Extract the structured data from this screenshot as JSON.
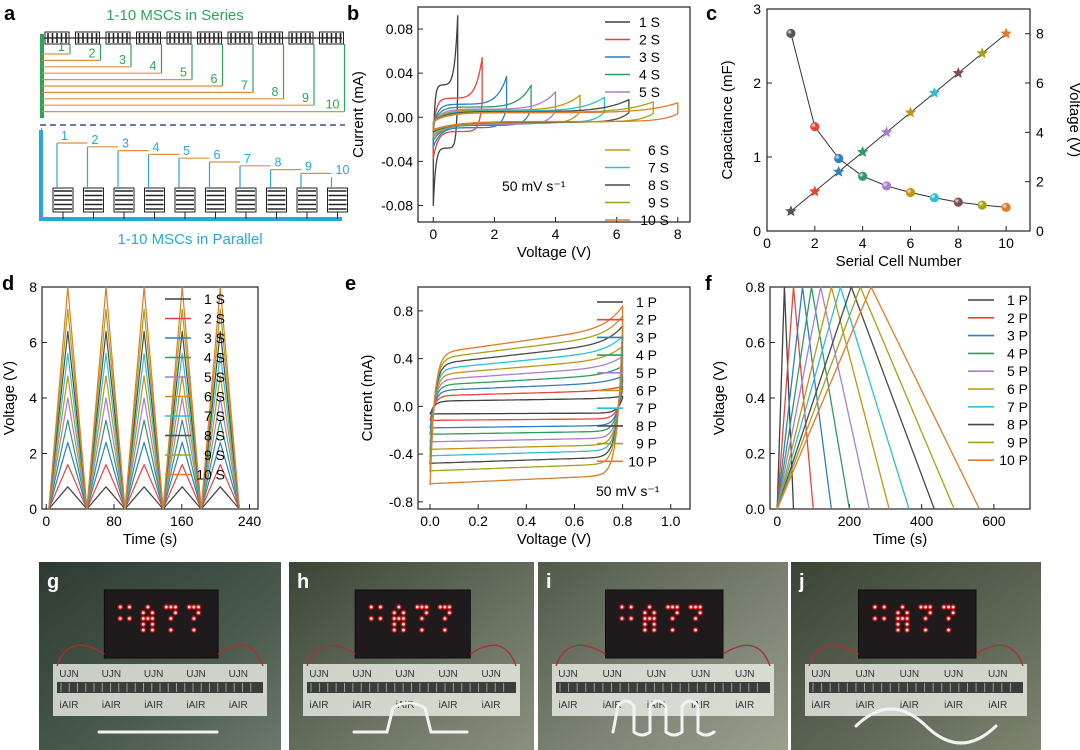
{
  "panels": {
    "a": {
      "letter": "a",
      "series_title": "1-10 MSCs in Series",
      "parallel_title": "1-10 MSCs in Parallel",
      "series_labels": [
        "1",
        "2",
        "3",
        "4",
        "5",
        "6",
        "7",
        "8",
        "9",
        "10"
      ],
      "parallel_labels": [
        "1",
        "2",
        "3",
        "4",
        "5",
        "6",
        "7",
        "8",
        "9",
        "10"
      ],
      "series_color": "#2ca55a",
      "series_wire_color": "#e0913a",
      "parallel_color": "#27a8dd",
      "parallel_wire_color": "#e0913a"
    },
    "g": {
      "letter": "g"
    },
    "h": {
      "letter": "h"
    },
    "i": {
      "letter": "i"
    },
    "j": {
      "letter": "j"
    }
  },
  "photo_labels": {
    "top": "UJN",
    "bottom": "iAIR"
  },
  "led_text": ":A??",
  "chart_data": [
    {
      "panel": "b",
      "type": "line",
      "xlabel": "Voltage (V)",
      "ylabel": "Current (mA)",
      "xlim": [
        -0.5,
        8.4
      ],
      "ylim": [
        -0.095,
        0.1
      ],
      "xticks": [
        0,
        2,
        4,
        6,
        8
      ],
      "yticks": [
        -0.08,
        -0.04,
        0.0,
        0.04,
        0.08
      ],
      "ytick_labels": [
        "-0.08",
        "-0.04",
        "0.00",
        "0.04",
        "0.08"
      ],
      "annotation": "50 mV s⁻¹",
      "legend": [
        "1 S",
        "2 S",
        "3 S",
        "4 S",
        "5 S",
        "6 S",
        "7 S",
        "8 S",
        "9 S",
        "10 S"
      ],
      "series": [
        {
          "name": "1 S",
          "vmax": 0.8,
          "ip": 0.092,
          "in": -0.08
        },
        {
          "name": "2 S",
          "vmax": 1.6,
          "ip": 0.054,
          "in": -0.037
        },
        {
          "name": "3 S",
          "vmax": 2.4,
          "ip": 0.037,
          "in": -0.027
        },
        {
          "name": "4 S",
          "vmax": 3.2,
          "ip": 0.029,
          "in": -0.021
        },
        {
          "name": "5 S",
          "vmax": 4.0,
          "ip": 0.023,
          "in": -0.018
        },
        {
          "name": "6 S",
          "vmax": 4.8,
          "ip": 0.02,
          "in": -0.016
        },
        {
          "name": "7 S",
          "vmax": 5.6,
          "ip": 0.018,
          "in": -0.014
        },
        {
          "name": "8 S",
          "vmax": 6.4,
          "ip": 0.016,
          "in": -0.013
        },
        {
          "name": "9 S",
          "vmax": 7.2,
          "ip": 0.014,
          "in": -0.012
        },
        {
          "name": "10 S",
          "vmax": 8.0,
          "ip": 0.013,
          "in": -0.011
        }
      ]
    },
    {
      "panel": "c",
      "type": "scatter",
      "xlabel": "Serial Cell Number",
      "ylabel": "Capacitance (mF)",
      "y2label": "Voltage (V)",
      "xlim": [
        0,
        11
      ],
      "ylim": [
        0,
        3
      ],
      "y2lim": [
        0,
        9
      ],
      "xticks": [
        0,
        2,
        4,
        6,
        8,
        10
      ],
      "yticks": [
        0,
        1,
        2,
        3
      ],
      "y2ticks": [
        0,
        2,
        4,
        6,
        8
      ],
      "x": [
        1,
        2,
        3,
        4,
        5,
        6,
        7,
        8,
        9,
        10
      ],
      "series": [
        {
          "axis": "left",
          "values": [
            2.67,
            1.41,
            0.98,
            0.74,
            0.61,
            0.52,
            0.45,
            0.39,
            0.35,
            0.32
          ]
        },
        {
          "axis": "right",
          "values": [
            0.8,
            1.6,
            2.4,
            3.2,
            4.0,
            4.8,
            5.6,
            6.4,
            7.2,
            8.0
          ]
        }
      ]
    },
    {
      "panel": "d",
      "type": "line",
      "xlabel": "Time (s)",
      "ylabel": "Voltage (V)",
      "xlim": [
        -5,
        250
      ],
      "ylim": [
        0,
        8
      ],
      "xticks": [
        0,
        80,
        160,
        240
      ],
      "yticks": [
        0,
        2,
        4,
        6,
        8
      ],
      "legend": [
        "1 S",
        "2 S",
        "3 S",
        "4 S",
        "5 S",
        "6 S",
        "7 S",
        "8 S",
        "9 S",
        "10 S"
      ],
      "period_s": 45,
      "cycles": 5,
      "series": [
        {
          "name": "1 S",
          "vmax": 0.8
        },
        {
          "name": "2 S",
          "vmax": 1.6
        },
        {
          "name": "3 S",
          "vmax": 2.4
        },
        {
          "name": "4 S",
          "vmax": 3.2
        },
        {
          "name": "5 S",
          "vmax": 4.0
        },
        {
          "name": "6 S",
          "vmax": 4.8
        },
        {
          "name": "7 S",
          "vmax": 5.6
        },
        {
          "name": "8 S",
          "vmax": 6.4
        },
        {
          "name": "9 S",
          "vmax": 7.2
        },
        {
          "name": "10 S",
          "vmax": 8.0
        }
      ]
    },
    {
      "panel": "e",
      "type": "line",
      "xlabel": "Voltage (V)",
      "ylabel": "Current (mA)",
      "xlim": [
        -0.05,
        1.08
      ],
      "ylim": [
        -0.86,
        1.0
      ],
      "xticks": [
        0.0,
        0.2,
        0.4,
        0.6,
        0.8,
        1.0
      ],
      "xtick_labels": [
        "0.0",
        "0.2",
        "0.4",
        "0.6",
        "0.8",
        "1.0"
      ],
      "yticks": [
        -0.8,
        -0.4,
        0.0,
        0.4,
        0.8
      ],
      "ytick_labels": [
        "-0.8",
        "-0.4",
        "0.0",
        "0.4",
        "0.8"
      ],
      "annotation": "50 mV s⁻¹",
      "legend": [
        "1 P",
        "2 P",
        "3 P",
        "4 P",
        "5 P",
        "6 P",
        "7 P",
        "8 P",
        "9 P",
        "10 P"
      ],
      "series": [
        {
          "name": "1 P",
          "ip": 0.05,
          "in": -0.07
        },
        {
          "name": "2 P",
          "ip": 0.1,
          "in": -0.13
        },
        {
          "name": "3 P",
          "ip": 0.15,
          "in": -0.2
        },
        {
          "name": "4 P",
          "ip": 0.2,
          "in": -0.26
        },
        {
          "name": "5 P",
          "ip": 0.25,
          "in": -0.33
        },
        {
          "name": "6 P",
          "ip": 0.3,
          "in": -0.4
        },
        {
          "name": "7 P",
          "ip": 0.35,
          "in": -0.46
        },
        {
          "name": "8 P",
          "ip": 0.4,
          "in": -0.53
        },
        {
          "name": "9 P",
          "ip": 0.45,
          "in": -0.6
        },
        {
          "name": "10 P",
          "ip": 0.5,
          "in": -0.72
        }
      ]
    },
    {
      "panel": "f",
      "type": "line",
      "xlabel": "Time (s)",
      "ylabel": "Voltage (V)",
      "xlim": [
        -20,
        700
      ],
      "ylim": [
        0,
        0.8
      ],
      "xticks": [
        0,
        200,
        400,
        600
      ],
      "yticks": [
        0.0,
        0.2,
        0.4,
        0.6,
        0.8
      ],
      "ytick_labels": [
        "0.0",
        "0.2",
        "0.4",
        "0.6",
        "0.8"
      ],
      "legend": [
        "1 P",
        "2 P",
        "3 P",
        "4 P",
        "5 P",
        "6 P",
        "7 P",
        "8 P",
        "9 P",
        "10 P"
      ],
      "series": [
        {
          "name": "1 P",
          "t_peak": 20,
          "t_end": 45
        },
        {
          "name": "2 P",
          "t_peak": 45,
          "t_end": 100
        },
        {
          "name": "3 P",
          "t_peak": 70,
          "t_end": 150
        },
        {
          "name": "4 P",
          "t_peak": 95,
          "t_end": 200
        },
        {
          "name": "5 P",
          "t_peak": 120,
          "t_end": 255
        },
        {
          "name": "6 P",
          "t_peak": 150,
          "t_end": 310
        },
        {
          "name": "7 P",
          "t_peak": 175,
          "t_end": 365
        },
        {
          "name": "8 P",
          "t_peak": 205,
          "t_end": 435
        },
        {
          "name": "9 P",
          "t_peak": 230,
          "t_end": 490
        },
        {
          "name": "10 P",
          "t_peak": 260,
          "t_end": 560
        }
      ]
    }
  ],
  "series_colors": [
    "#404040",
    "#e8443a",
    "#2f7fc1",
    "#2e9b63",
    "#a77fd1",
    "#c0950f",
    "#2cc0d0",
    "#4a4a4a",
    "#a5a21a",
    "#e07b2a"
  ],
  "c_colors": [
    "#555555",
    "#e8443a",
    "#2f7fc1",
    "#2e9b63",
    "#a77fd1",
    "#c0950f",
    "#2cc0d0",
    "#805050",
    "#a5a21a",
    "#e07b2a"
  ]
}
